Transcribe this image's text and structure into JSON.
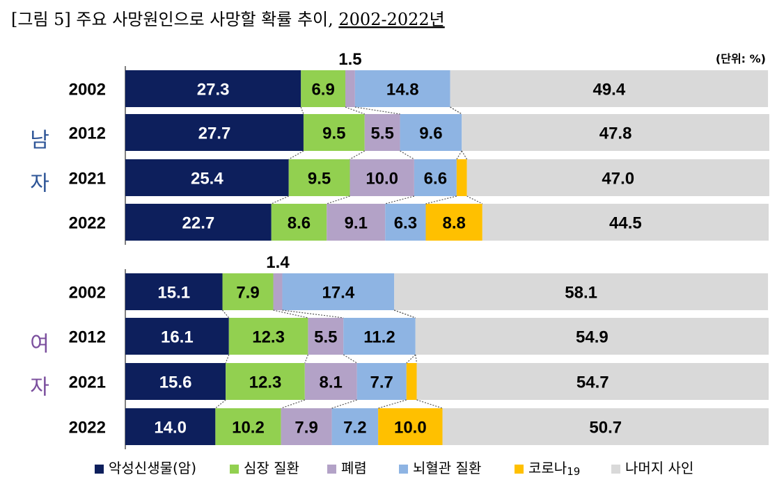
{
  "title": {
    "main": "[그림 5] 주요 사망원인으로 사망할 확률 추이, ",
    "years": "2002-2022년"
  },
  "unit_label": "(단위: %)",
  "chart_data": {
    "type": "bar",
    "stacked": true,
    "orientation": "horizontal",
    "xlim": [
      0,
      100
    ],
    "categories": [
      "악성신생물(암)",
      "심장 질환",
      "폐렴",
      "뇌혈관 질환",
      "코로나19",
      "나머지 사인"
    ],
    "colors": [
      "#0d1f5c",
      "#92d050",
      "#b3a2c7",
      "#8eb4e3",
      "#ffc000",
      "#d9d9d9"
    ],
    "label_colors": [
      "#ffffff",
      "#000000",
      "#000000",
      "#000000",
      "#000000",
      "#000000"
    ],
    "legend": [
      "악성신생물(암)",
      "심장 질환",
      "폐렴",
      "뇌혈관 질환",
      "코로나",
      "나머지 사인"
    ],
    "legend_suffix": "19",
    "legend_position": "bottom",
    "groups": [
      {
        "name": "남자",
        "chars": [
          "남",
          "자"
        ],
        "color": "#2e5597",
        "rows": [
          {
            "year": "2002",
            "values": [
              27.3,
              6.9,
              1.5,
              14.8,
              0,
              49.4
            ],
            "labels": [
              "27.3",
              "6.9",
              "1.5",
              "14.8",
              "",
              "49.4"
            ]
          },
          {
            "year": "2012",
            "values": [
              27.7,
              9.5,
              5.5,
              9.6,
              0,
              47.8
            ],
            "labels": [
              "27.7",
              "9.5",
              "5.5",
              "9.6",
              "",
              "47.8"
            ]
          },
          {
            "year": "2021",
            "values": [
              25.4,
              9.5,
              10.0,
              6.6,
              1.6,
              47.0
            ],
            "labels": [
              "25.4",
              "9.5",
              "10.0",
              "6.6",
              "1.6",
              "47.0"
            ]
          },
          {
            "year": "2022",
            "values": [
              22.7,
              8.6,
              9.1,
              6.3,
              8.8,
              44.5
            ],
            "labels": [
              "22.7",
              "8.6",
              "9.1",
              "6.3",
              "8.8",
              "44.5"
            ]
          }
        ]
      },
      {
        "name": "여자",
        "chars": [
          "여",
          "자"
        ],
        "color": "#7b4f9e",
        "rows": [
          {
            "year": "2002",
            "values": [
              15.1,
              7.9,
              1.4,
              17.4,
              0,
              58.1
            ],
            "labels": [
              "15.1",
              "7.9",
              "1.4",
              "17.4",
              "",
              "58.1"
            ]
          },
          {
            "year": "2012",
            "values": [
              16.1,
              12.3,
              5.5,
              11.2,
              0,
              54.9
            ],
            "labels": [
              "16.1",
              "12.3",
              "5.5",
              "11.2",
              "",
              "54.9"
            ]
          },
          {
            "year": "2021",
            "values": [
              15.6,
              12.3,
              8.1,
              7.7,
              1.6,
              54.7
            ],
            "labels": [
              "15.6",
              "12.3",
              "8.1",
              "7.7",
              "1.6",
              "54.7"
            ]
          },
          {
            "year": "2022",
            "values": [
              14.0,
              10.2,
              7.9,
              7.2,
              10.0,
              50.7
            ],
            "labels": [
              "14.0",
              "10.2",
              "7.9",
              "7.2",
              "10.0",
              "50.7"
            ]
          }
        ]
      }
    ]
  }
}
